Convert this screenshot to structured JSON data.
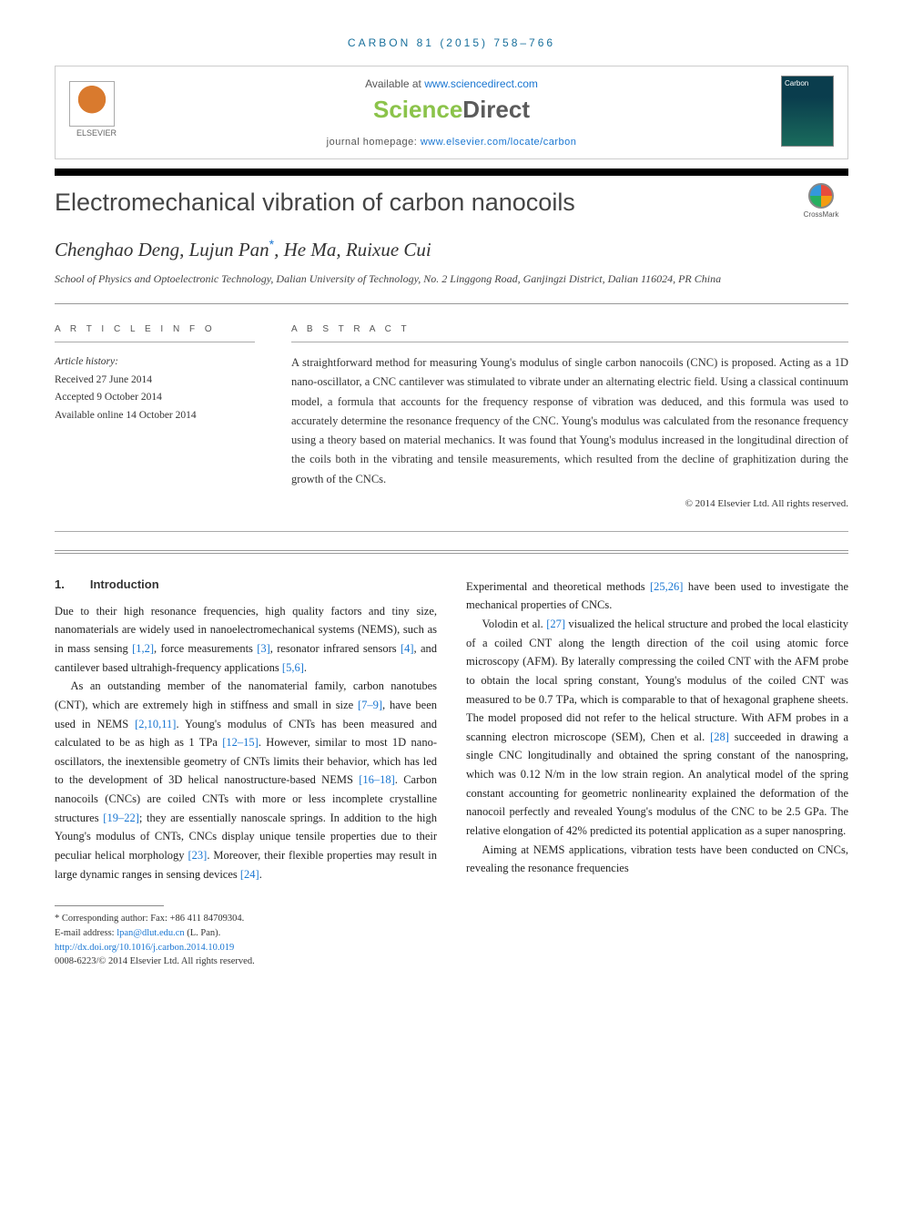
{
  "citation": {
    "journal": "CARBON",
    "volume": "81",
    "year": "(2015)",
    "pages": "758–766"
  },
  "header": {
    "available_prefix": "Available at ",
    "available_url": "www.sciencedirect.com",
    "publisher_logo_a": "Science",
    "publisher_logo_b": "Direct",
    "homepage_prefix": "journal homepage: ",
    "homepage_url": "www.elsevier.com/locate/carbon",
    "elsevier_label": "ELSEVIER",
    "cover_label": "Carbon",
    "crossmark_label": "CrossMark"
  },
  "article": {
    "title": "Electromechanical vibration of carbon nanocoils",
    "authors": "Chenghao Deng, Lujun Pan",
    "authors_rest": ", He Ma, Ruixue Cui",
    "corr_marker": "*",
    "affiliation": "School of Physics and Optoelectronic Technology, Dalian University of Technology, No. 2 Linggong Road, Ganjingzi District, Dalian 116024, PR China"
  },
  "info": {
    "heading": "A R T I C L E  I N F O",
    "history_label": "Article history:",
    "received": "Received 27 June 2014",
    "accepted": "Accepted 9 October 2014",
    "online": "Available online 14 October 2014"
  },
  "abstract": {
    "heading": "A B S T R A C T",
    "text": "A straightforward method for measuring Young's modulus of single carbon nanocoils (CNC) is proposed. Acting as a 1D nano-oscillator, a CNC cantilever was stimulated to vibrate under an alternating electric field. Using a classical continuum model, a formula that accounts for the frequency response of vibration was deduced, and this formula was used to accurately determine the resonance frequency of the CNC. Young's modulus was calculated from the resonance frequency using a theory based on material mechanics. It was found that Young's modulus increased in the longitudinal direction of the coils both in the vibrating and tensile measurements, which resulted from the decline of graphitization during the growth of the CNCs.",
    "copyright": "© 2014 Elsevier Ltd. All rights reserved."
  },
  "section1": {
    "number": "1.",
    "title": "Introduction"
  },
  "body": {
    "col1_p1_a": "Due to their high resonance frequencies, high quality factors and tiny size, nanomaterials are widely used in nanoelectromechanical systems (NEMS), such as in mass sensing ",
    "r1": "[1,2]",
    "col1_p1_b": ", force measurements ",
    "r2": "[3]",
    "col1_p1_c": ", resonator infrared sensors ",
    "r3": "[4]",
    "col1_p1_d": ", and cantilever based ultrahigh-frequency applications ",
    "r4": "[5,6]",
    "col1_p1_e": ".",
    "col1_p2_a": "As an outstanding member of the nanomaterial family, carbon nanotubes (CNT), which are extremely high in stiffness and small in size ",
    "r5": "[7–9]",
    "col1_p2_b": ", have been used in NEMS ",
    "r6": "[2,10,11]",
    "col1_p2_c": ". Young's modulus of CNTs has been measured and calculated to be as high as 1 TPa ",
    "r7": "[12–15]",
    "col1_p2_d": ". However, similar to most 1D nano-oscillators, the inextensible geometry of CNTs limits their behavior, which has led to the development of 3D helical nanostructure-based NEMS ",
    "r8": "[16–18]",
    "col1_p2_e": ". Carbon nanocoils (CNCs) are coiled CNTs with more or less incomplete crystalline structures ",
    "r9": "[19–22]",
    "col1_p2_f": "; they are essentially nanoscale springs. In addition to the high Young's modulus of CNTs, CNCs display unique tensile properties due to their peculiar helical morphology ",
    "r10": "[23]",
    "col1_p2_g": ". Moreover, their flexible properties may result in large dynamic ranges in sensing devices ",
    "r11": "[24]",
    "col1_p2_h": ".",
    "col2_p1_a": "Experimental and theoretical methods ",
    "r12": "[25,26]",
    "col2_p1_b": " have been used to investigate the mechanical properties of CNCs.",
    "col2_p2_a": "Volodin et al. ",
    "r13": "[27]",
    "col2_p2_b": " visualized the helical structure and probed the local elasticity of a coiled CNT along the length direction of the coil using atomic force microscopy (AFM). By laterally compressing the coiled CNT with the AFM probe to obtain the local spring constant, Young's modulus of the coiled CNT was measured to be 0.7 TPa, which is comparable to that of hexagonal graphene sheets. The model proposed did not refer to the helical structure. With AFM probes in a scanning electron microscope (SEM), Chen et al. ",
    "r14": "[28]",
    "col2_p2_c": " succeeded in drawing a single CNC longitudinally and obtained the spring constant of the nanospring, which was 0.12 N/m in the low strain region. An analytical model of the spring constant accounting for geometric nonlinearity explained the deformation of the nanocoil perfectly and revealed Young's modulus of the CNC to be 2.5 GPa. The relative elongation of 42% predicted its potential application as a super nanospring.",
    "col2_p3": "Aiming at NEMS applications, vibration tests have been conducted on CNCs, revealing the resonance frequencies"
  },
  "footnote": {
    "corr": "* Corresponding author: Fax: +86 411 84709304.",
    "email_label": "E-mail address: ",
    "email": "lpan@dlut.edu.cn",
    "email_suffix": " (L. Pan).",
    "doi": "http://dx.doi.org/10.1016/j.carbon.2014.10.019",
    "issn_copyright": "0008-6223/© 2014 Elsevier Ltd. All rights reserved."
  },
  "colors": {
    "link": "#1976d2",
    "accent": "#186f9b",
    "text": "#333333",
    "rule": "#999999"
  }
}
